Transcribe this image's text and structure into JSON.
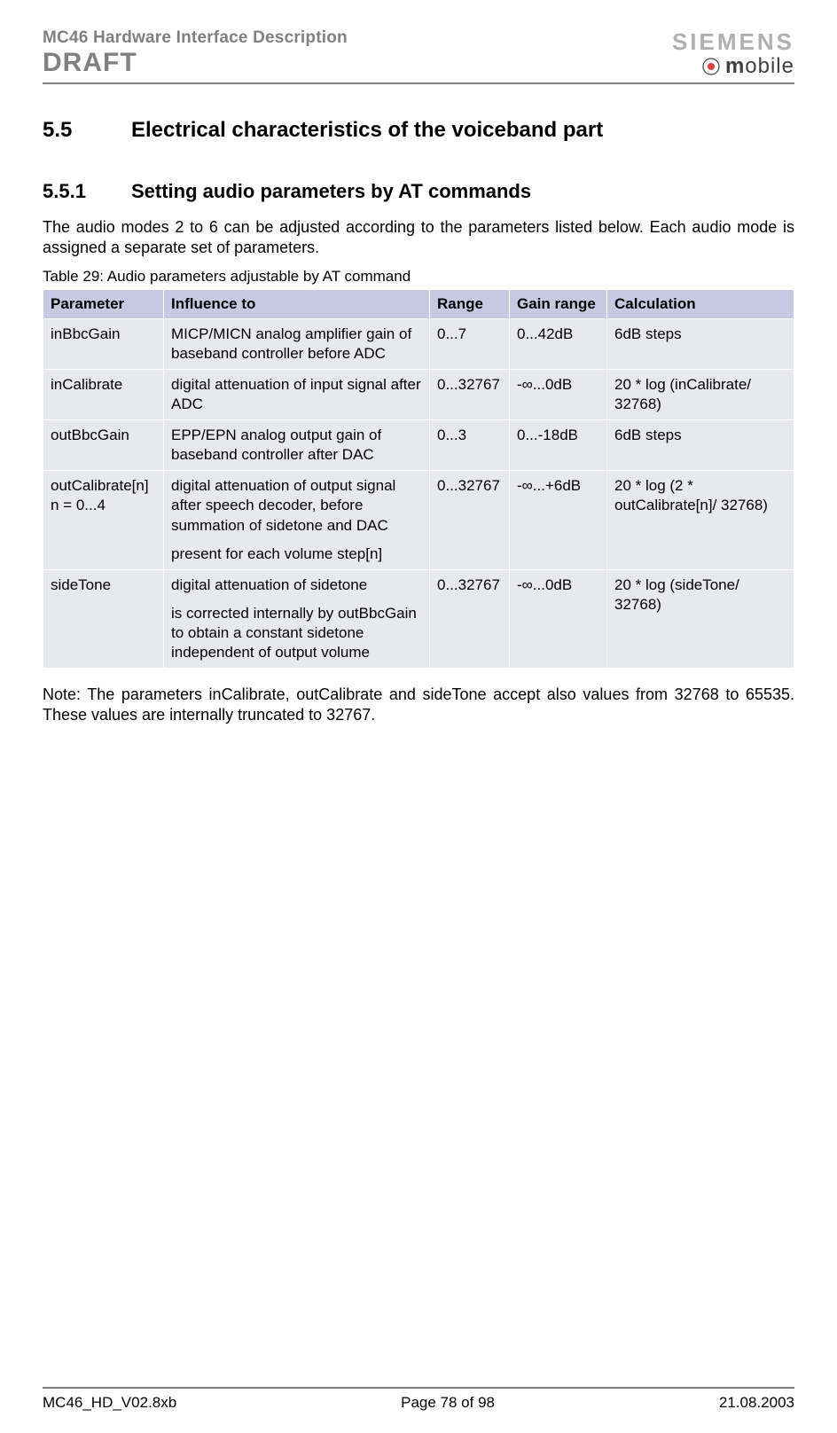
{
  "header": {
    "doc_title": "MC46 Hardware Interface Description",
    "draft": "DRAFT",
    "siemens": "SIEMENS",
    "mobile_m": "m",
    "mobile_rest": "obile"
  },
  "sections": {
    "h1_num": "5.5",
    "h1_title": "Electrical characteristics of the voiceband part",
    "h2_num": "5.5.1",
    "h2_title": "Setting audio parameters by AT commands",
    "intro": "The audio modes 2 to 6 can be adjusted according to the parameters listed below. Each audio mode is assigned a separate set of parameters.",
    "table_caption": "Table 29: Audio parameters adjustable by AT command"
  },
  "table": {
    "headers": {
      "param": "Parameter",
      "influence": "Influence to",
      "range": "Range",
      "gain": "Gain range",
      "calc": "Calculation"
    },
    "rows": [
      {
        "param": "inBbcGain",
        "infl1": "MICP/MICN analog amplifier gain of baseband controller before ADC",
        "infl2": "",
        "range": "0...7",
        "gain": "0...42dB",
        "calc": "6dB steps"
      },
      {
        "param": "inCalibrate",
        "infl1": "digital attenuation of input signal after ADC",
        "infl2": "",
        "range": "0...32767",
        "gain": "-∞...0dB",
        "calc": "20 * log (inCalibrate/ 32768)"
      },
      {
        "param": "outBbcGain",
        "infl1": "EPP/EPN analog output gain of baseband controller after DAC",
        "infl2": "",
        "range": "0...3",
        "gain": "0...-18dB",
        "calc": "6dB steps"
      },
      {
        "param": "outCalibrate[n] n = 0...4",
        "infl1": "digital attenuation of output signal after speech decoder, before summation of sidetone and DAC",
        "infl2": "present for each volume step[n]",
        "range": "0...32767",
        "gain": "-∞...+6dB",
        "calc": "20 * log (2 * outCalibrate[n]/ 32768)"
      },
      {
        "param": "sideTone",
        "infl1": "digital attenuation of sidetone",
        "infl2": "is corrected internally by outBbcGain to obtain a constant sidetone independent of output volume",
        "range": "0...32767",
        "gain": "-∞...0dB",
        "calc": "20 * log (sideTone/ 32768)"
      }
    ]
  },
  "note": "Note: The parameters inCalibrate, outCalibrate and sideTone accept also values from 32768 to 65535. These values are internally truncated to 32767.",
  "footer": {
    "left": "MC46_HD_V02.8xb",
    "center": "Page 78 of 98",
    "right": "21.08.2003"
  },
  "colors": {
    "header_bg": "#c8c8e3",
    "cell_bg": "#e8e8f0",
    "rule": "#808080",
    "gray_text": "#808080"
  }
}
